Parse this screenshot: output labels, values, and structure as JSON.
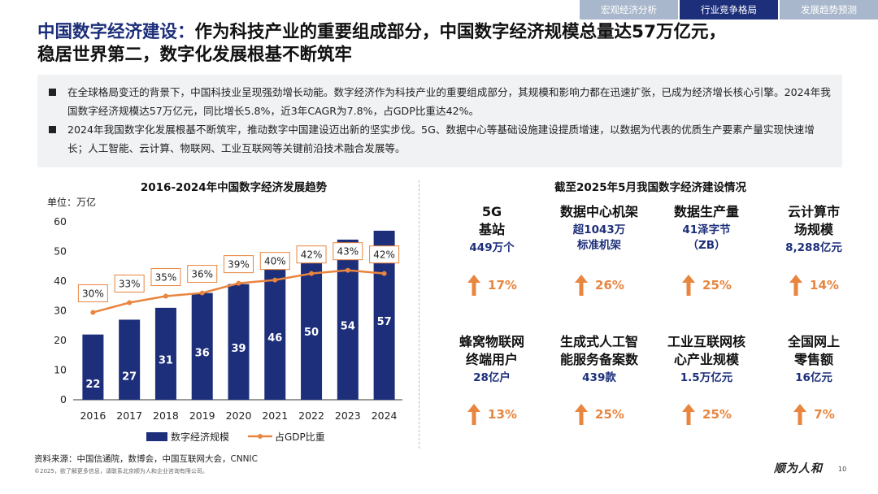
{
  "nav": {
    "tabs": [
      {
        "label": "宏观经济分析",
        "active": false
      },
      {
        "label": "行业竞争格局",
        "active": true
      },
      {
        "label": "发展趋势预测",
        "active": false
      }
    ]
  },
  "title": {
    "highlight": "中国数字经济建设：",
    "line1_rest": "作为科技产业的重要组成部分，中国数字经济规模总量达57万亿元，",
    "line2": "稳居世界第二，数字化发展根基不断筑牢"
  },
  "summary": {
    "bullets": [
      "在全球格局变迁的背景下，中国科技业呈现强劲增长动能。数字经济作为科技产业的重要组成部分，其规模和影响力都在迅速扩张，已成为经济增长核心引擎。2024年我国数字经济规模达57万亿元，同比增长5.8%，近3年CAGR为7.8%，占GDP比重达42%。",
      "2024年我国数字化发展根基不断筑牢，推动数字中国建设迈出新的坚实步伐。5G、数据中心等基础设施建设提质增速，以数据为代表的优质生产要素产量实现快速增长；人工智能、云计算、物联网、工业互联网等关键前沿技术融合发展等。"
    ]
  },
  "chart_data": {
    "type": "bar",
    "title": "2016-2024年中国数字经济发展趋势",
    "unit_label": "单位：万亿",
    "categories": [
      "2016",
      "2017",
      "2018",
      "2019",
      "2020",
      "2021",
      "2022",
      "2023",
      "2024"
    ],
    "series": [
      {
        "name": "数字经济规模",
        "type": "bar",
        "axis": "left",
        "values": [
          22,
          27,
          31,
          36,
          39,
          46,
          50,
          54,
          57
        ]
      },
      {
        "name": "占GDP比重",
        "type": "line",
        "axis": "right",
        "values": [
          30,
          33,
          35,
          36,
          39,
          40,
          42,
          43,
          42
        ],
        "value_labels": [
          "30%",
          "33%",
          "35%",
          "36%",
          "39%",
          "40%",
          "42%",
          "43%",
          "42%"
        ]
      }
    ],
    "yticks": [
      "0",
      "10",
      "20",
      "30",
      "40",
      "50",
      "60"
    ],
    "ylim": [
      0,
      60
    ],
    "secondary_ylim": [
      0,
      60
    ],
    "legend_position": "bottom",
    "bar_color": "#1d2f7a",
    "line_color": "#e8853f"
  },
  "right_panel": {
    "title": "截至2025年5月我国数字经济建设情况",
    "growth_color": "#e8853f",
    "value_color": "#1d2f7a",
    "items": [
      {
        "name": "5G基站",
        "value": "449万个",
        "growth": "17%"
      },
      {
        "name": "数据中心机架",
        "value": "超1043万标准机架",
        "growth": "26%"
      },
      {
        "name": "数据生产量",
        "value": "41泽字节（ZB）",
        "growth": "25%"
      },
      {
        "name": "云计算市场规模",
        "value": "8,288亿元",
        "growth": "14%"
      },
      {
        "name": "蜂窝物联网终端用户",
        "value": "28亿户",
        "growth": "13%"
      },
      {
        "name": "生成式人工智能服务备案数",
        "value": "439款",
        "growth": "25%"
      },
      {
        "name": "工业互联网核心产业规模",
        "value": "1.5万亿元",
        "growth": "25%"
      },
      {
        "name": "全国网上零售额",
        "value": "16亿元",
        "growth": "7%"
      }
    ]
  },
  "footer": {
    "source": "资料来源：中国信通院，数博会，中国互联网大会，CNNIC",
    "copyright": "©2025，欲了解更多信息，请联系北京顺为人和企业咨询有限公司。",
    "logo": "顺为人和",
    "page_number": "10"
  }
}
